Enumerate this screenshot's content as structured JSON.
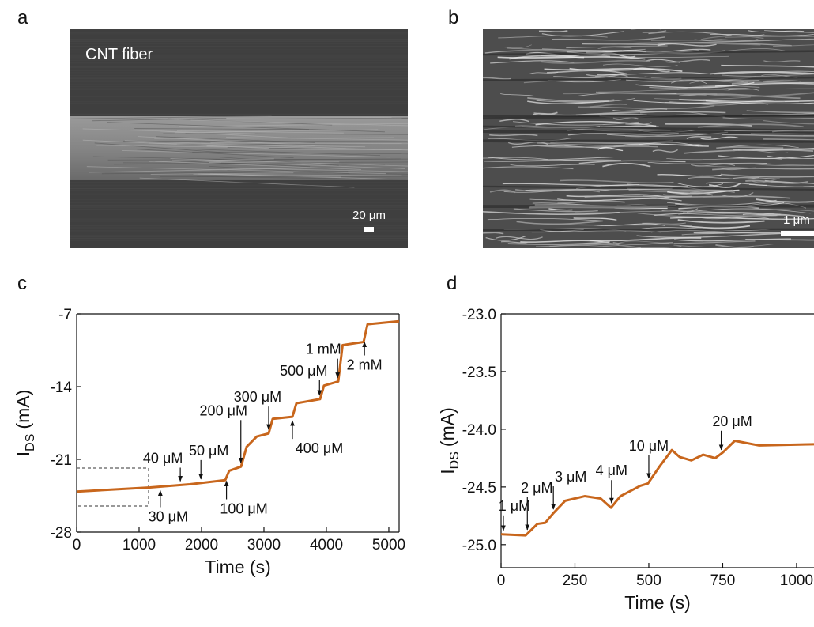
{
  "panel_labels": [
    "a",
    "b",
    "c",
    "d"
  ],
  "images": [
    {
      "caption": "CNT fiber",
      "scale_bar": "20 μm"
    },
    {
      "scale_bar": "1 μm"
    }
  ],
  "chart_data": [
    {
      "type": "line",
      "x_label": "Time (s)",
      "y_label": [
        "I",
        "DS",
        "(mA)"
      ],
      "x": [
        0,
        1177,
        1810,
        2380,
        2443,
        2633,
        2722,
        2886,
        3076,
        3140,
        3456,
        3520,
        3899,
        3962,
        4190,
        4260,
        4596,
        4659,
        5165
      ],
      "series": [
        {
          "color": "#c8661c",
          "values": [
            -24.1,
            -23.7,
            -23.4,
            -23.0,
            -22.1,
            -21.7,
            -19.8,
            -18.8,
            -18.5,
            -17.1,
            -16.9,
            -15.6,
            -15.2,
            -13.9,
            -13.5,
            -10.0,
            -9.7,
            -8.0,
            -7.7
          ]
        }
      ],
      "xlim": [
        0,
        5165
      ],
      "xticks": [
        0,
        1000,
        2000,
        3000,
        4000,
        5000
      ],
      "ylim": [
        -28,
        -7
      ],
      "yticks": [
        -28,
        -21,
        -14,
        -7
      ],
      "annotations": [
        {
          "text": "30 μM",
          "x": 1340
        },
        {
          "text": "40 μM",
          "x": 1660
        },
        {
          "text": "50 μM",
          "x": 1990
        },
        {
          "text": "100 μM",
          "x": 2400
        },
        {
          "text": "200 μM",
          "x": 2630
        },
        {
          "text": "300 μM",
          "x": 3076
        },
        {
          "text": "400 μM",
          "x": 3456
        },
        {
          "text": "500 μM",
          "x": 3890
        },
        {
          "text": "1 mM",
          "x": 4180
        },
        {
          "text": "2 mM",
          "x": 4610
        }
      ]
    },
    {
      "type": "line",
      "x_label": "Time (s)",
      "y_label": [
        "I",
        "DS",
        "(mA)"
      ],
      "x": [
        0,
        83,
        123,
        150,
        176,
        217,
        283,
        337,
        372,
        404,
        471,
        497,
        537,
        578,
        604,
        644,
        684,
        725,
        751,
        791,
        872,
        1059
      ],
      "series": [
        {
          "color": "#c8661c",
          "values": [
            -24.91,
            -24.92,
            -24.82,
            -24.81,
            -24.73,
            -24.62,
            -24.58,
            -24.6,
            -24.68,
            -24.58,
            -24.49,
            -24.47,
            -24.32,
            -24.18,
            -24.24,
            -24.27,
            -24.22,
            -24.25,
            -24.2,
            -24.1,
            -24.14,
            -24.13
          ]
        }
      ],
      "xlim": [
        0,
        1059
      ],
      "xticks": [
        0,
        250,
        500,
        750,
        1000
      ],
      "ylim": [
        -25.2,
        -23.0
      ],
      "yticks": [
        {
          "value": -25.0,
          "label": "-25.0"
        },
        {
          "value": -24.5,
          "label": "-24.5"
        },
        {
          "value": -24.0,
          "label": "-24.0"
        },
        {
          "value": -23.5,
          "label": "-23.5"
        },
        {
          "value": -23.0,
          "label": "-23.0"
        }
      ],
      "annotations": [
        {
          "text": "1 μM",
          "x": 8
        },
        {
          "text": "2 μM",
          "x": 89
        },
        {
          "text": "3 μM",
          "x": 177
        },
        {
          "text": "4 μM",
          "x": 374
        },
        {
          "text": "10 μM",
          "x": 500
        },
        {
          "text": "20 μM",
          "x": 745
        }
      ]
    }
  ]
}
